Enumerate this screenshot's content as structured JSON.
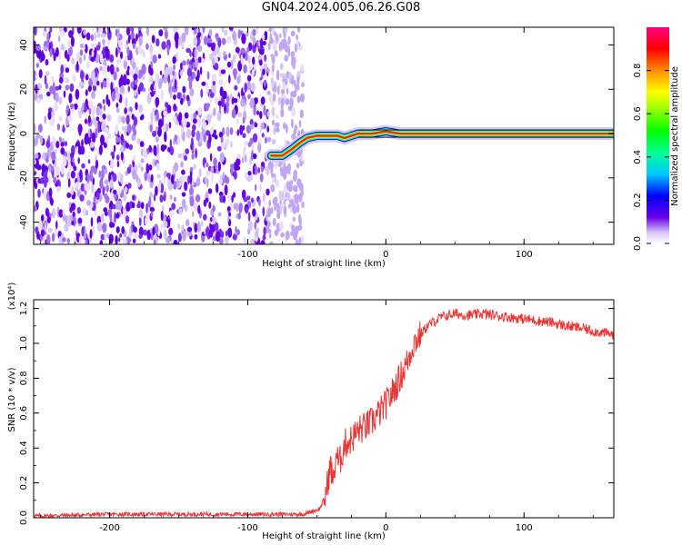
{
  "title": "GN04.2024.005.06.26.G08",
  "chart_data": [
    {
      "type": "heatmap",
      "xlabel": "Height of straight line (km)",
      "ylabel": "Frequency (Hz)",
      "xlim": [
        -255,
        165
      ],
      "ylim": [
        -50,
        48
      ],
      "x_ticks": [
        -200,
        -100,
        0,
        100
      ],
      "y_ticks": [
        -40,
        -20,
        0,
        20,
        40
      ],
      "noise_region_x": [
        -255,
        -60
      ],
      "signal_track": {
        "x": [
          -83,
          -75,
          -68,
          -62,
          -57,
          -50,
          -45,
          -40,
          -35,
          -30,
          -25,
          -20,
          -15,
          -10,
          0,
          10,
          20,
          40,
          60,
          80,
          100,
          120,
          140,
          165
        ],
        "y": [
          -10,
          -10,
          -7,
          -4,
          -2,
          -1,
          -1,
          -1,
          -1,
          -2,
          -1,
          0,
          0,
          0,
          1,
          0,
          0,
          0,
          0,
          0,
          0,
          0,
          0,
          0
        ]
      },
      "colorbar": {
        "label": "Normalized spectral amplitude",
        "range": [
          0,
          1
        ],
        "ticks": [
          "0.0",
          "0.2",
          "0.4",
          "0.6",
          "0.8"
        ]
      }
    },
    {
      "type": "line",
      "xlabel": "Height of straight line (km)",
      "ylabel": "SNR (10 * v/v)",
      "y_multiplier": "(x10⁴)",
      "xlim": [
        -255,
        165
      ],
      "ylim": [
        0,
        1.25
      ],
      "x_ticks": [
        -200,
        -100,
        0,
        100
      ],
      "y_ticks": [
        "0.0",
        "0.2",
        "0.4",
        "0.6",
        "0.8",
        "1.0",
        "1.2"
      ],
      "x": [
        -255,
        -200,
        -150,
        -100,
        -60,
        -48,
        -44,
        -40,
        -38,
        -36,
        -34,
        -30,
        -25,
        -20,
        -15,
        -10,
        -5,
        0,
        5,
        10,
        15,
        20,
        25,
        30,
        40,
        50,
        60,
        70,
        80,
        90,
        100,
        110,
        120,
        130,
        140,
        150,
        165
      ],
      "y": [
        0.01,
        0.02,
        0.02,
        0.02,
        0.02,
        0.05,
        0.12,
        0.3,
        0.2,
        0.38,
        0.3,
        0.42,
        0.45,
        0.5,
        0.52,
        0.55,
        0.6,
        0.65,
        0.72,
        0.8,
        0.88,
        1.0,
        1.05,
        1.1,
        1.15,
        1.17,
        1.16,
        1.17,
        1.16,
        1.15,
        1.14,
        1.13,
        1.12,
        1.1,
        1.09,
        1.07,
        1.05
      ],
      "color": "#ee3333"
    }
  ]
}
